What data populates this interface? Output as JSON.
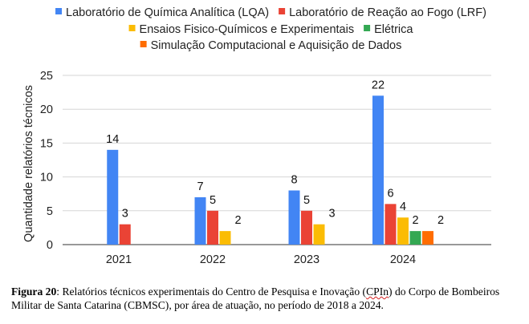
{
  "chart_data": {
    "type": "bar",
    "title": "",
    "xlabel": "",
    "ylabel": "Quantidade relatórios técnicos",
    "ylim": [
      0,
      25
    ],
    "yticks": [
      0,
      5,
      10,
      15,
      20,
      25
    ],
    "grid": true,
    "legend_position": "top",
    "categories": [
      "2021",
      "2022",
      "2023",
      "2024"
    ],
    "series": [
      {
        "name": "Laboratório de Química Analítica (LQA)",
        "color": "#4285F4",
        "values": [
          14,
          7,
          8,
          22
        ]
      },
      {
        "name": "Laboratório de Reação ao Fogo (LRF)",
        "color": "#EA4335",
        "values": [
          3,
          5,
          5,
          6
        ]
      },
      {
        "name": "Ensaios Fisico-Químicos e Experimentais",
        "color": "#FBBC04",
        "values": [
          null,
          2,
          3,
          4
        ]
      },
      {
        "name": "Elétrica",
        "color": "#34A853",
        "values": [
          null,
          null,
          null,
          2
        ]
      },
      {
        "name": "Simulação Computacional e Aquisição de Dados",
        "color": "#FF6D01",
        "values": [
          null,
          null,
          null,
          2
        ]
      }
    ]
  },
  "caption": {
    "label": "Figura 20",
    "text_before": ": Relatórios técnicos experimentais do Centro de Pesquisa e Inovação (",
    "acronym": "CPIn",
    "text_after": ") do Corpo de Bombeiros Militar de Santa Catarina (CBMSC), por área de atuação, no período de 2018 a 2024."
  }
}
